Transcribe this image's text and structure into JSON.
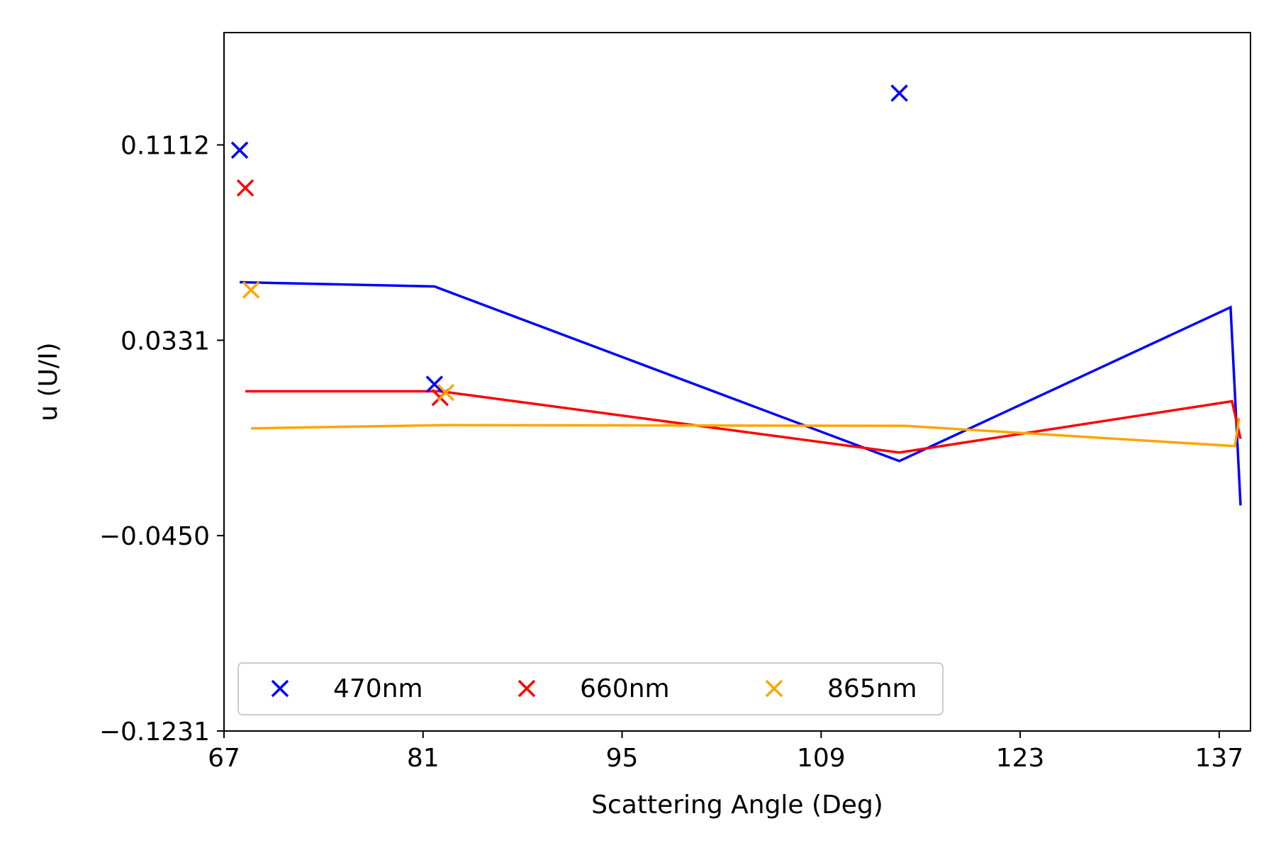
{
  "chart_data": {
    "type": "scatter",
    "title": "",
    "xlabel": "Scattering Angle (Deg)",
    "ylabel": "u (U/I)",
    "xlim": [
      67,
      139.2
    ],
    "ylim": [
      -0.1231,
      0.1561
    ],
    "xticks": [
      67,
      81,
      95,
      109,
      123,
      137
    ],
    "xtick_labels": [
      "67",
      "81",
      "95",
      "109",
      "123",
      "137"
    ],
    "yticks": [
      0.1112,
      0.0331,
      -0.045,
      -0.1231
    ],
    "ytick_labels": [
      "0.1112",
      "0.0331",
      "−0.0450",
      "−0.1231"
    ],
    "grid": false,
    "legend": {
      "placement": "lower-left",
      "columns": 3
    },
    "series": [
      {
        "name": "470nm",
        "color": "#0000ff",
        "points": {
          "x": [
            68.1,
            81.8,
            114.5
          ],
          "y": [
            0.1091,
            0.0155,
            0.1319
          ]
        },
        "line": {
          "x": [
            68.1,
            81.8,
            114.5,
            137.8,
            138.5
          ],
          "y": [
            0.0563,
            0.0546,
            -0.0152,
            0.0463,
            -0.0329
          ]
        }
      },
      {
        "name": "660nm",
        "color": "#ff0000",
        "points": {
          "x": [
            68.5,
            82.2
          ],
          "y": [
            0.094,
            0.0102
          ]
        },
        "line": {
          "x": [
            68.5,
            82.2,
            114.5,
            137.9,
            138.5
          ],
          "y": [
            0.0127,
            0.0127,
            -0.0118,
            0.0087,
            -0.0063
          ]
        }
      },
      {
        "name": "865nm",
        "color": "#ffa500",
        "points": {
          "x": [
            68.9,
            82.6
          ],
          "y": [
            0.0532,
            0.0122
          ]
        },
        "line": {
          "x": [
            68.9,
            82.6,
            115.0,
            138.1,
            138.4
          ],
          "y": [
            -0.0021,
            -0.0008,
            -0.0011,
            -0.0092,
            0.0021
          ]
        }
      }
    ]
  }
}
